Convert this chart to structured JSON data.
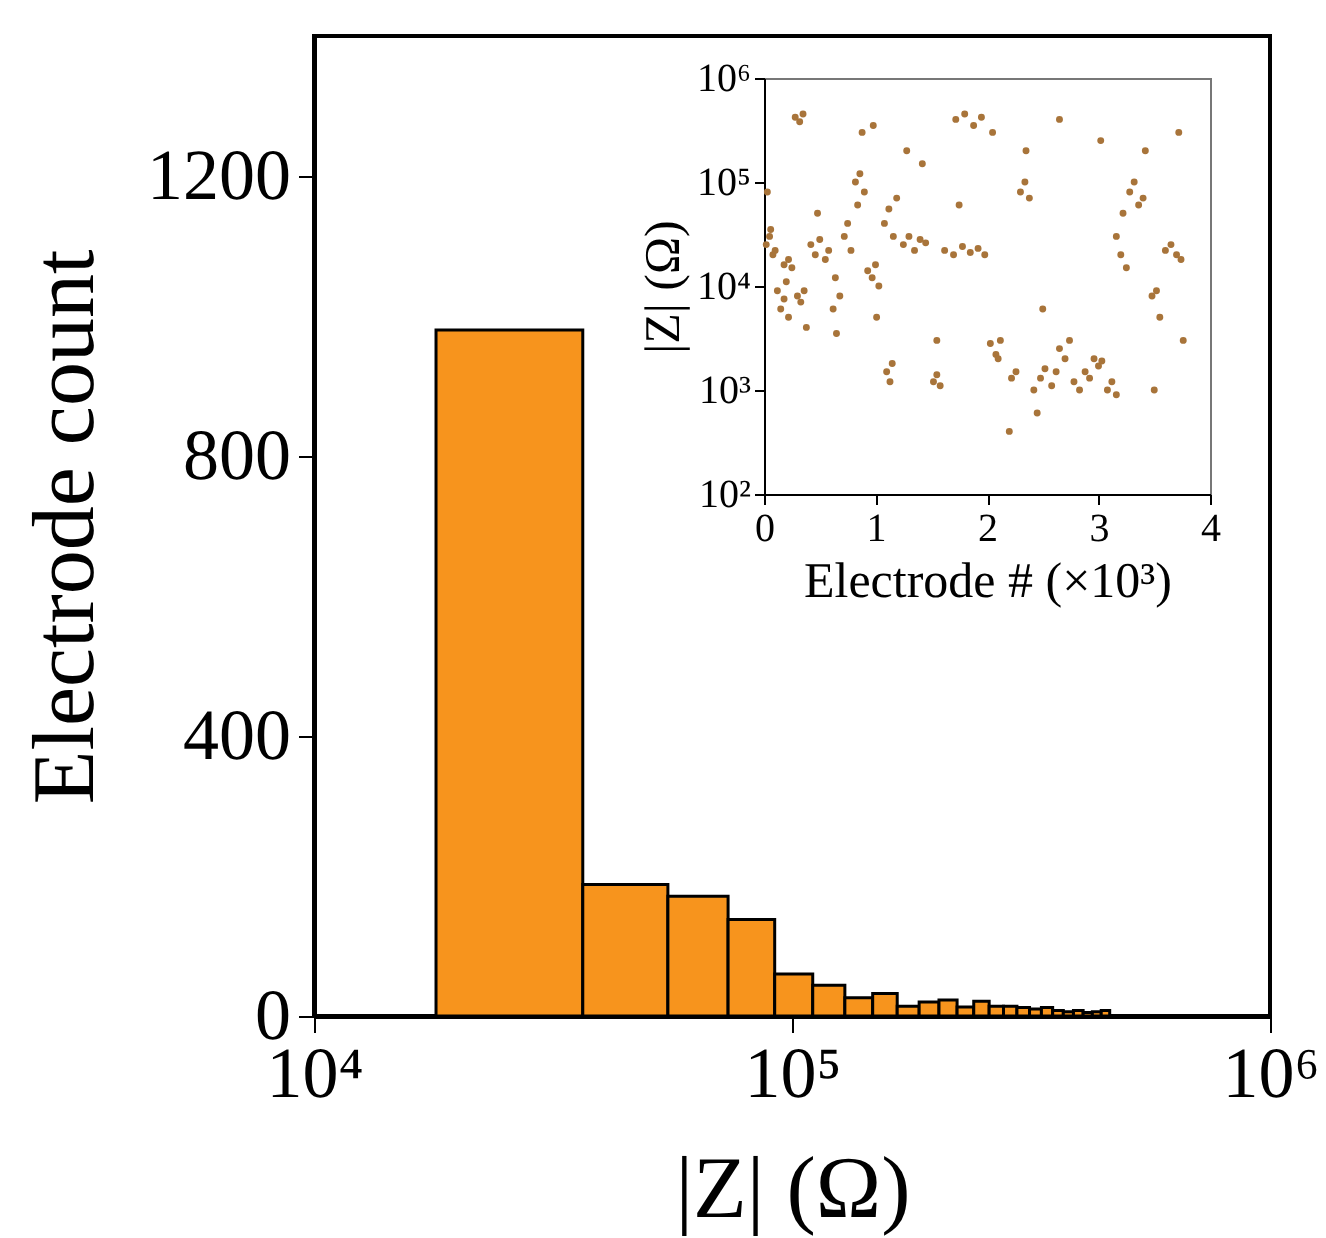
{
  "chart_data": [
    {
      "type": "histogram",
      "xlabel": "|Z| (Ω)",
      "ylabel": "Electrode count",
      "color": "#f7941d",
      "log": "x",
      "bins": [
        18000,
        36500,
        55000,
        73500,
        92000,
        110500,
        129000,
        147500,
        166000,
        184500,
        203000,
        221500,
        240000,
        258500,
        277000,
        295500,
        314000,
        332500,
        351000,
        369500,
        388000,
        406500,
        425000,
        443500,
        462000
      ],
      "values": [
        980,
        188,
        171,
        138,
        60,
        44,
        26,
        32,
        14,
        20,
        23,
        13,
        21,
        14,
        14,
        12,
        10,
        12,
        8,
        6,
        8,
        5,
        6,
        8
      ],
      "xlim": [
        10000,
        1000000
      ],
      "xticks": [
        {
          "value": 10000,
          "label": "10⁴"
        },
        {
          "value": 100000,
          "label": "10⁵"
        },
        {
          "value": 1000000,
          "label": "10⁶"
        }
      ],
      "ylim": [
        0,
        1400
      ],
      "yticks": [
        0,
        400,
        800,
        1200
      ]
    },
    {
      "type": "scatter",
      "xlabel": "Electrode # (×10³)",
      "ylabel": "|Z| (Ω)",
      "color": "#a8743a",
      "log": "y",
      "marker": "circle",
      "x": [
        0.02,
        0.05,
        0.08,
        0.1,
        0.06,
        0.03,
        0.12,
        0.15,
        0.18,
        0.2,
        0.22,
        0.18,
        0.22,
        0.25,
        0.3,
        0.33,
        0.36,
        0.38,
        0.28,
        0.32,
        0.35,
        0.42,
        0.46,
        0.5,
        0.55,
        0.58,
        0.48,
        0.62,
        0.65,
        0.68,
        0.64,
        0.72,
        0.75,
        0.78,
        0.82,
        0.86,
        0.9,
        0.88,
        0.84,
        0.93,
        0.97,
        1.0,
        1.03,
        0.98,
        1.01,
        1.08,
        1.12,
        1.16,
        1.19,
        1.1,
        1.13,
        1.15,
        1.25,
        1.3,
        1.35,
        1.4,
        1.45,
        1.28,
        1.42,
        1.52,
        1.55,
        1.58,
        1.55,
        1.62,
        1.7,
        1.78,
        1.85,
        1.92,
        1.98,
        1.75,
        1.72,
        1.8,
        1.88,
        1.95,
        2.05,
        2.03,
        2.08,
        2.12,
        2.1,
        2.22,
        2.26,
        2.2,
        2.3,
        2.34,
        2.38,
        2.35,
        2.42,
        2.48,
        2.52,
        2.58,
        2.62,
        2.45,
        2.65,
        2.7,
        2.74,
        2.78,
        2.83,
        2.88,
        2.92,
        2.96,
        3.0,
        3.03,
        3.08,
        3.12,
        3.16,
        3.16,
        3.2,
        3.22,
        3.25,
        3.28,
        3.32,
        3.36,
        3.4,
        3.42,
        3.48,
        3.52,
        3.5,
        3.55,
        3.6,
        3.65,
        3.7,
        3.74,
        3.72,
        3.76,
        2.5,
        2.65,
        3.02
      ],
      "values": [
        25000,
        30000,
        20000,
        22000,
        35000,
        80000,
        9000,
        6000,
        7500,
        11000,
        5000,
        16000,
        18000,
        15000,
        8000,
        7000,
        9000,
        4000,
        420000,
        380000,
        450000,
        25000,
        20000,
        28000,
        18000,
        22000,
        50000,
        6000,
        3500,
        8000,
        12000,
        30000,
        40000,
        22000,
        100000,
        120000,
        80000,
        300000,
        60000,
        14000,
        12000,
        16000,
        10000,
        350000,
        5000,
        40000,
        55000,
        30000,
        70000,
        1500,
        1200,
        1800,
        25000,
        30000,
        22000,
        28000,
        26000,
        200000,
        150000,
        1200,
        1400,
        1100,
        3000,
        22000,
        20000,
        24000,
        21000,
        23000,
        20000,
        60000,
        400000,
        450000,
        350000,
        420000,
        300000,
        2800,
        2200,
        3000,
        2000,
        1300,
        1500,
        400,
        80000,
        100000,
        70000,
        200000,
        1000,
        1300,
        1600,
        1100,
        1500,
        600,
        2500,
        2000,
        3000,
        1200,
        1000,
        1500,
        1300,
        2000,
        1700,
        1900,
        1000,
        1200,
        900,
        30000,
        20000,
        50000,
        15000,
        80000,
        100000,
        60000,
        70000,
        200000,
        8000,
        9000,
        1000,
        5000,
        22000,
        25000,
        20000,
        18000,
        300000,
        3000,
        6000,
        400000,
        250000
      ],
      "xlim": [
        0,
        4
      ],
      "xticks": [
        0,
        1,
        2,
        3,
        4
      ],
      "ylim": [
        100,
        1000000
      ],
      "yticks": [
        {
          "value": 100,
          "label": "10²"
        },
        {
          "value": 1000,
          "label": "10³"
        },
        {
          "value": 10000,
          "label": "10⁴"
        },
        {
          "value": 100000,
          "label": "10⁵"
        },
        {
          "value": 1000000,
          "label": "10⁶"
        }
      ]
    }
  ]
}
